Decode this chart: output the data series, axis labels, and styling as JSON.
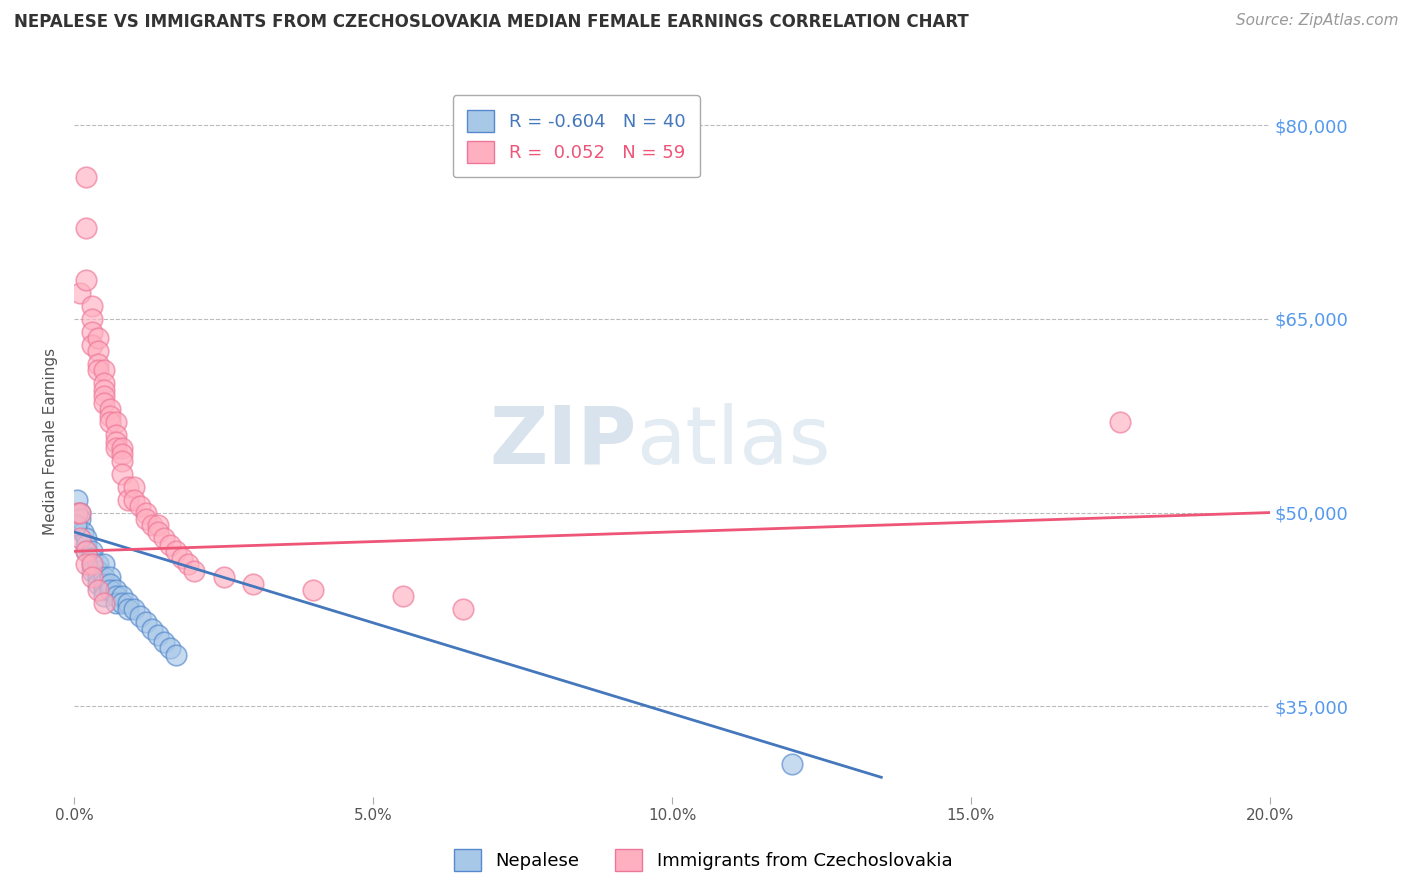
{
  "title": "NEPALESE VS IMMIGRANTS FROM CZECHOSLOVAKIA MEDIAN FEMALE EARNINGS CORRELATION CHART",
  "source": "Source: ZipAtlas.com",
  "ylabel": "Median Female Earnings",
  "xlim": [
    0.0,
    0.2
  ],
  "ylim": [
    28000,
    83000
  ],
  "yticks": [
    35000,
    50000,
    65000,
    80000
  ],
  "ytick_labels": [
    "$35,000",
    "$50,000",
    "$65,000",
    "$80,000"
  ],
  "xticks": [
    0.0,
    0.05,
    0.1,
    0.15,
    0.2
  ],
  "xtick_labels": [
    "0.0%",
    "5.0%",
    "10.0%",
    "15.0%",
    "20.0%"
  ],
  "series": [
    {
      "name": "Nepalese",
      "R": -0.604,
      "N": 40,
      "color": "#A8C8E8",
      "edge_color": "#5588CC",
      "trend_color": "#4477BB",
      "x": [
        0.0005,
        0.001,
        0.001,
        0.0015,
        0.002,
        0.002,
        0.002,
        0.003,
        0.003,
        0.003,
        0.003,
        0.004,
        0.004,
        0.004,
        0.004,
        0.005,
        0.005,
        0.005,
        0.005,
        0.005,
        0.006,
        0.006,
        0.006,
        0.007,
        0.007,
        0.007,
        0.008,
        0.008,
        0.009,
        0.009,
        0.01,
        0.011,
        0.012,
        0.013,
        0.014,
        0.015,
        0.016,
        0.017,
        0.12,
        0.0003
      ],
      "y": [
        51000,
        50000,
        49500,
        48500,
        48000,
        47500,
        47000,
        47000,
        46500,
        46000,
        45500,
        46000,
        45500,
        45000,
        44500,
        46000,
        45000,
        44500,
        44000,
        43500,
        45000,
        44500,
        44000,
        44000,
        43500,
        43000,
        43500,
        43000,
        43000,
        42500,
        42500,
        42000,
        41500,
        41000,
        40500,
        40000,
        39500,
        39000,
        30500,
        49000
      ],
      "trend_x": [
        0.0,
        0.135
      ],
      "trend_y": [
        48500,
        29500
      ]
    },
    {
      "name": "Immigrants from Czechoslovakia",
      "R": 0.052,
      "N": 59,
      "color": "#FFB0C0",
      "edge_color": "#EE7799",
      "trend_color": "#EE5577",
      "x": [
        0.0005,
        0.001,
        0.001,
        0.002,
        0.002,
        0.002,
        0.003,
        0.003,
        0.003,
        0.003,
        0.004,
        0.004,
        0.004,
        0.004,
        0.005,
        0.005,
        0.005,
        0.005,
        0.005,
        0.006,
        0.006,
        0.006,
        0.007,
        0.007,
        0.007,
        0.007,
        0.008,
        0.008,
        0.008,
        0.008,
        0.009,
        0.009,
        0.01,
        0.01,
        0.011,
        0.012,
        0.012,
        0.013,
        0.014,
        0.014,
        0.015,
        0.016,
        0.017,
        0.018,
        0.019,
        0.02,
        0.025,
        0.03,
        0.04,
        0.055,
        0.065,
        0.175,
        0.001,
        0.002,
        0.002,
        0.003,
        0.003,
        0.004,
        0.005
      ],
      "y": [
        50000,
        67000,
        50000,
        76000,
        72000,
        68000,
        66000,
        65000,
        64000,
        63000,
        63500,
        62500,
        61500,
        61000,
        61000,
        60000,
        59500,
        59000,
        58500,
        58000,
        57500,
        57000,
        57000,
        56000,
        55500,
        55000,
        55000,
        54500,
        54000,
        53000,
        52000,
        51000,
        52000,
        51000,
        50500,
        50000,
        49500,
        49000,
        49000,
        48500,
        48000,
        47500,
        47000,
        46500,
        46000,
        45500,
        45000,
        44500,
        44000,
        43500,
        42500,
        57000,
        48000,
        47000,
        46000,
        46000,
        45000,
        44000,
        43000
      ],
      "trend_x": [
        0.0,
        0.2
      ],
      "trend_y": [
        47000,
        50000
      ]
    }
  ],
  "watermark_zip": "ZIP",
  "watermark_atlas": "atlas",
  "background_color": "#FFFFFF",
  "grid_color": "#BBBBBB",
  "title_fontsize": 12,
  "axis_label_fontsize": 11,
  "tick_fontsize": 11,
  "legend_fontsize": 13,
  "source_fontsize": 11,
  "ytick_color": "#5599EE"
}
